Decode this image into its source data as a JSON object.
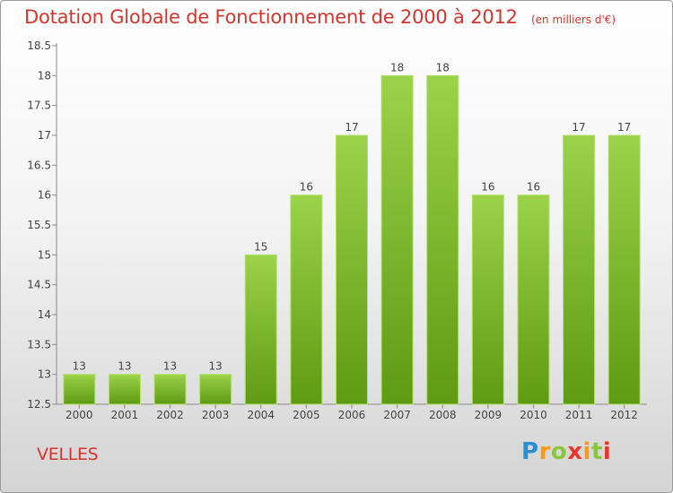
{
  "page": {
    "title": "Dotation Globale de Fonctionnement de 2000 à 2012",
    "subtitle": "(en milliers d'€)",
    "commune": "VELLES",
    "logo": "Proxiti"
  },
  "colors": {
    "title": "#d3352c",
    "bar_top": "#9bd34a",
    "bar_bottom": "#5e9a12",
    "bar_border": "#b4e06a",
    "axis": "#8a8a8a"
  },
  "chart_data": {
    "type": "bar",
    "title": "Dotation Globale de Fonctionnement de 2000 à 2012",
    "subtitle": "(en milliers d'€)",
    "xlabel": "",
    "ylabel": "",
    "categories": [
      "2000",
      "2001",
      "2002",
      "2003",
      "2004",
      "2005",
      "2006",
      "2007",
      "2008",
      "2009",
      "2010",
      "2011",
      "2012"
    ],
    "values": [
      13,
      13,
      13,
      13,
      15,
      16,
      17,
      18,
      18,
      16,
      16,
      17,
      17
    ],
    "ylim": [
      12.5,
      18.5
    ],
    "yticks": [
      12.5,
      13,
      13.5,
      14,
      14.5,
      15,
      15.5,
      16,
      16.5,
      17,
      17.5,
      18,
      18.5
    ],
    "ytick_labels": [
      "12.5",
      "13",
      "13.5",
      "14",
      "14.5",
      "15",
      "15.5",
      "16",
      "16.5",
      "17",
      "17.5",
      "18",
      "18.5"
    ],
    "data_labels": [
      "13",
      "13",
      "13",
      "13",
      "15",
      "16",
      "17",
      "18",
      "18",
      "16",
      "16",
      "17",
      "17"
    ],
    "grid": false,
    "legend": "none"
  }
}
